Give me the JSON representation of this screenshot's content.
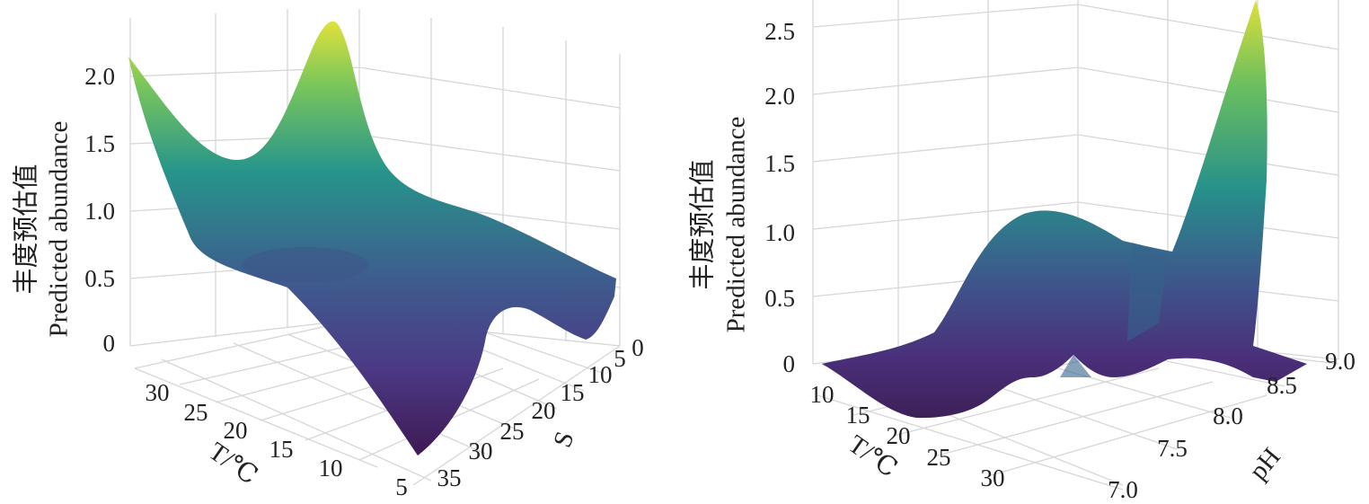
{
  "chart_data": [
    {
      "type": "surface",
      "zlabel_cn": "丰度预估值",
      "zlabel_en": "Predicted abundance",
      "xlabel": "T/℃",
      "ylabel": "S",
      "z_ticks": [
        "0",
        "0.5",
        "1.0",
        "1.5",
        "2.0"
      ],
      "x_ticks": [
        "30",
        "25",
        "20",
        "15",
        "10",
        "5"
      ],
      "y_ticks": [
        "35",
        "30",
        "25",
        "20",
        "15",
        "10",
        "5",
        "0"
      ],
      "zlim": [
        0,
        2.3
      ],
      "colorscale": [
        "#440154",
        "#3b528b",
        "#21918c",
        "#5ec962",
        "#fde725"
      ],
      "grid": true
    },
    {
      "type": "surface",
      "zlabel_cn": "丰度预估值",
      "zlabel_en": "Predicted abundance",
      "xlabel": "T/℃",
      "ylabel": "pH",
      "z_ticks": [
        "0",
        "0.5",
        "1.0",
        "1.5",
        "2.0",
        "2.5"
      ],
      "x_ticks": [
        "10",
        "15",
        "20",
        "25",
        "30"
      ],
      "y_ticks": [
        "7.0",
        "7.5",
        "8.0",
        "8.5",
        "9.0"
      ],
      "zlim": [
        0,
        2.7
      ],
      "colorscale": [
        "#440154",
        "#3b528b",
        "#21918c",
        "#5ec962",
        "#fde725"
      ],
      "grid": true
    }
  ]
}
